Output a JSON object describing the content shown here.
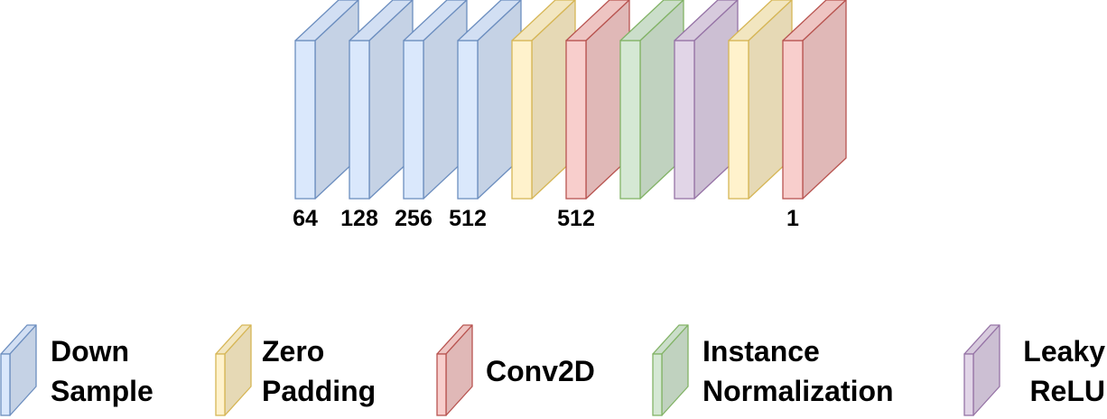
{
  "layer_types": {
    "down_sample": {
      "front": "#dae8fc",
      "side": "#c5d2e5",
      "top": "#d2dff3",
      "stroke": "#6c8ebf"
    },
    "zero_padding": {
      "front": "#fff2cc",
      "side": "#e6d9b5",
      "top": "#f2e6c0",
      "stroke": "#d6b656"
    },
    "conv2d": {
      "front": "#f8cecc",
      "side": "#e0b8b7",
      "top": "#eec4c2",
      "stroke": "#b85450"
    },
    "instance_normalization": {
      "front": "#d5e8d4",
      "side": "#c0d2bf",
      "top": "#cbdeca",
      "stroke": "#82b366"
    },
    "leaky_relu": {
      "front": "#e1d5e7",
      "side": "#ccbfd3",
      "top": "#d7cadd",
      "stroke": "#9673a6"
    }
  },
  "blocks": [
    {
      "type": "down_sample",
      "label": "64"
    },
    {
      "type": "down_sample",
      "label": "128"
    },
    {
      "type": "down_sample",
      "label": "256"
    },
    {
      "type": "down_sample",
      "label": "512"
    },
    {
      "type": "zero_padding",
      "label": ""
    },
    {
      "type": "conv2d",
      "label": "512"
    },
    {
      "type": "instance_normalization",
      "label": ""
    },
    {
      "type": "leaky_relu",
      "label": ""
    },
    {
      "type": "zero_padding",
      "label": ""
    },
    {
      "type": "conv2d",
      "label": "1"
    }
  ],
  "legend": [
    {
      "type": "down_sample",
      "lines": [
        "Down",
        "Sample"
      ]
    },
    {
      "type": "zero_padding",
      "lines": [
        "Zero",
        "Padding"
      ]
    },
    {
      "type": "conv2d",
      "lines": [
        "Conv2D"
      ]
    },
    {
      "type": "instance_normalization",
      "lines": [
        "Instance",
        "Normalization"
      ]
    },
    {
      "type": "leaky_relu",
      "lines": [
        "Leaky",
        "ReLU"
      ]
    }
  ]
}
